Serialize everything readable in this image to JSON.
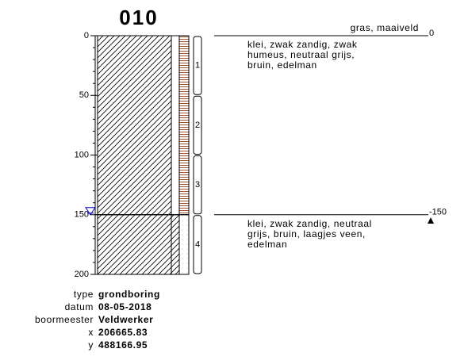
{
  "title": "010",
  "depth_axis": {
    "ylim": [
      0,
      200
    ],
    "yticks": [
      0,
      50,
      100,
      150,
      200
    ],
    "minor_ticks": [
      10,
      20,
      30,
      40,
      60,
      70,
      80,
      90,
      110,
      120,
      130,
      140,
      160,
      170,
      180,
      190
    ]
  },
  "layers": [
    {
      "top": 0,
      "bottom": 150,
      "description": [
        "klei, zwak zandig, zwak",
        "humeus, neutraal grijs,",
        "bruin, edelman"
      ]
    },
    {
      "top": 150,
      "bottom": 200,
      "description": [
        "klei, zwak zandig, neutraal",
        "grijs, bruin, laagjes veen,",
        "edelman"
      ]
    }
  ],
  "surface_label": "gras, maaiveld",
  "boundary_labels": [
    {
      "value": 0,
      "label": "0"
    },
    {
      "value": 150,
      "label": "-150"
    }
  ],
  "water_level": 150,
  "samples": [
    {
      "label": "1",
      "top": 0,
      "bottom": 50
    },
    {
      "label": "2",
      "top": 50,
      "bottom": 100
    },
    {
      "label": "3",
      "top": 100,
      "bottom": 150
    },
    {
      "label": "4",
      "top": 150,
      "bottom": 200
    }
  ],
  "metadata": [
    {
      "key": "type",
      "value": "grondboring"
    },
    {
      "key": "datum",
      "value": "08-05-2018"
    },
    {
      "key": "boormeester",
      "value": "Veldwerker"
    },
    {
      "key": "x",
      "value": "206665.83"
    },
    {
      "key": "y",
      "value": "488166.95"
    }
  ]
}
